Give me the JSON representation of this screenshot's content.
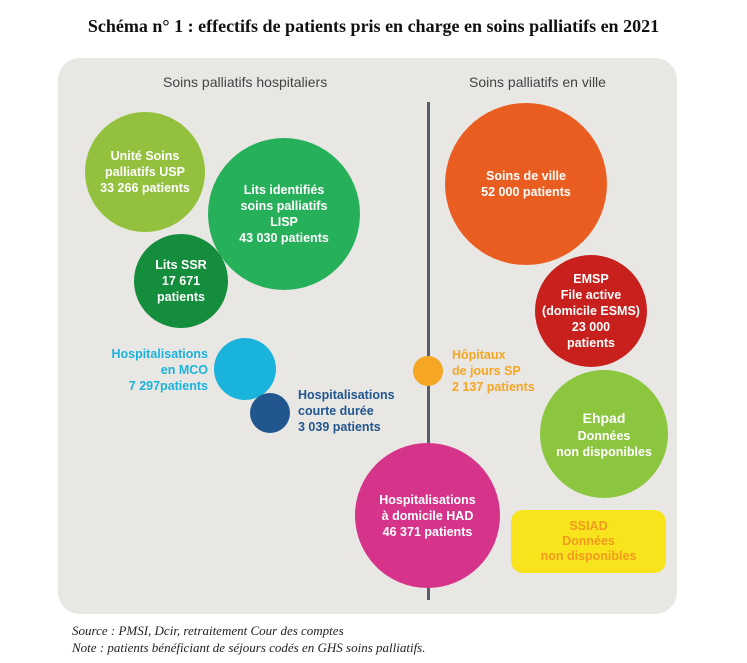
{
  "title": "Schéma n° 1 : effectifs de patients pris en charge en soins palliatifs en 2021",
  "sections": {
    "left": "Soins palliatifs hospitaliers",
    "right": "Soins palliatifs en ville"
  },
  "bubbles": {
    "usp": {
      "lines": [
        "Unité Soins",
        "palliatifs USP",
        "33 266 patients"
      ],
      "color": "#93c13d"
    },
    "lisp": {
      "lines": [
        "Lits identifiés",
        "soins palliatifs",
        "LISP",
        "43 030 patients"
      ],
      "color": "#27b05a"
    },
    "ssr": {
      "lines": [
        "Lits SSR",
        "17 671",
        "patients"
      ],
      "color": "#148d3c"
    },
    "mco": {
      "lines": [
        "Hospitalisations",
        "en MCO",
        "7 297patients"
      ],
      "color": "#1ab3dc"
    },
    "hcd": {
      "lines": [
        "Hospitalisations",
        "courte durée",
        "3 039 patients"
      ],
      "color": "#22568f"
    },
    "ville": {
      "lines": [
        "Soins de ville",
        "52 000 patients"
      ],
      "color": "#ea5d20"
    },
    "emsp": {
      "lines": [
        "EMSP",
        "File active",
        "(domicile ESMS)",
        "23 000",
        "patients"
      ],
      "color": "#c8201d"
    },
    "hdj": {
      "lines": [
        "Hôpitaux",
        "de jours SP",
        "2 137 patients"
      ],
      "color": "#f5a623"
    },
    "ehpad": {
      "lines": [
        "Ehpad",
        "Données",
        "non disponibles"
      ],
      "color": "#8cc63f"
    },
    "had": {
      "lines": [
        "Hospitalisations",
        "à domicile HAD",
        "46 371 patients"
      ],
      "color": "#d6338a"
    },
    "ssiad": {
      "lines": [
        "SSIAD",
        "Données",
        "non disponibles"
      ],
      "color": "#f7e41c"
    }
  },
  "notes": {
    "source": "Source : PMSI, Dcir, retraitement Cour des comptes",
    "note": "Note : patients bénéficiant de séjours codés en GHS soins palliatifs."
  }
}
